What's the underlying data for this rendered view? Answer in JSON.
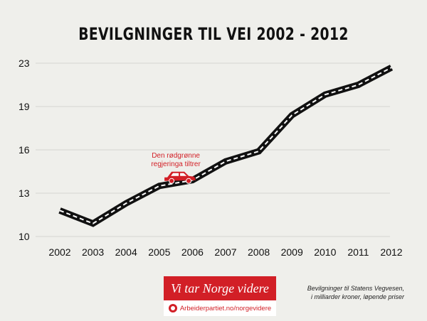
{
  "chart_data": {
    "type": "line",
    "title": "BEVILGNINGER TIL VEI 2002 - 2012",
    "x": [
      2002,
      2003,
      2004,
      2005,
      2006,
      2007,
      2008,
      2009,
      2010,
      2011,
      2012
    ],
    "yticks": [
      10,
      13,
      16,
      19,
      23
    ],
    "series": [
      {
        "values": [
          11.8,
          10.9,
          12.3,
          13.5,
          13.9,
          15.2,
          15.9,
          18.4,
          20.1,
          21.0,
          22.6
        ]
      }
    ],
    "grid": true,
    "annotation": {
      "lines": [
        "Den rødgrønne",
        "regjeringa tiltrer"
      ],
      "x": 2005.5
    }
  },
  "colors": {
    "background": "#efefeb",
    "grid": "#d6d6d2",
    "line": "#111111",
    "dash": "#ffffff",
    "accent": "#d21f26"
  },
  "banner": {
    "text": "Vi tar Norge videre",
    "url": "Arbeiderpartiet.no/norgevidere"
  },
  "note": {
    "line1": "Bevilgninger til Statens Vegvesen,",
    "line2": "i milliarder kroner, løpende priser"
  },
  "icons": {
    "car": "car-icon",
    "logo": "rose-icon"
  }
}
